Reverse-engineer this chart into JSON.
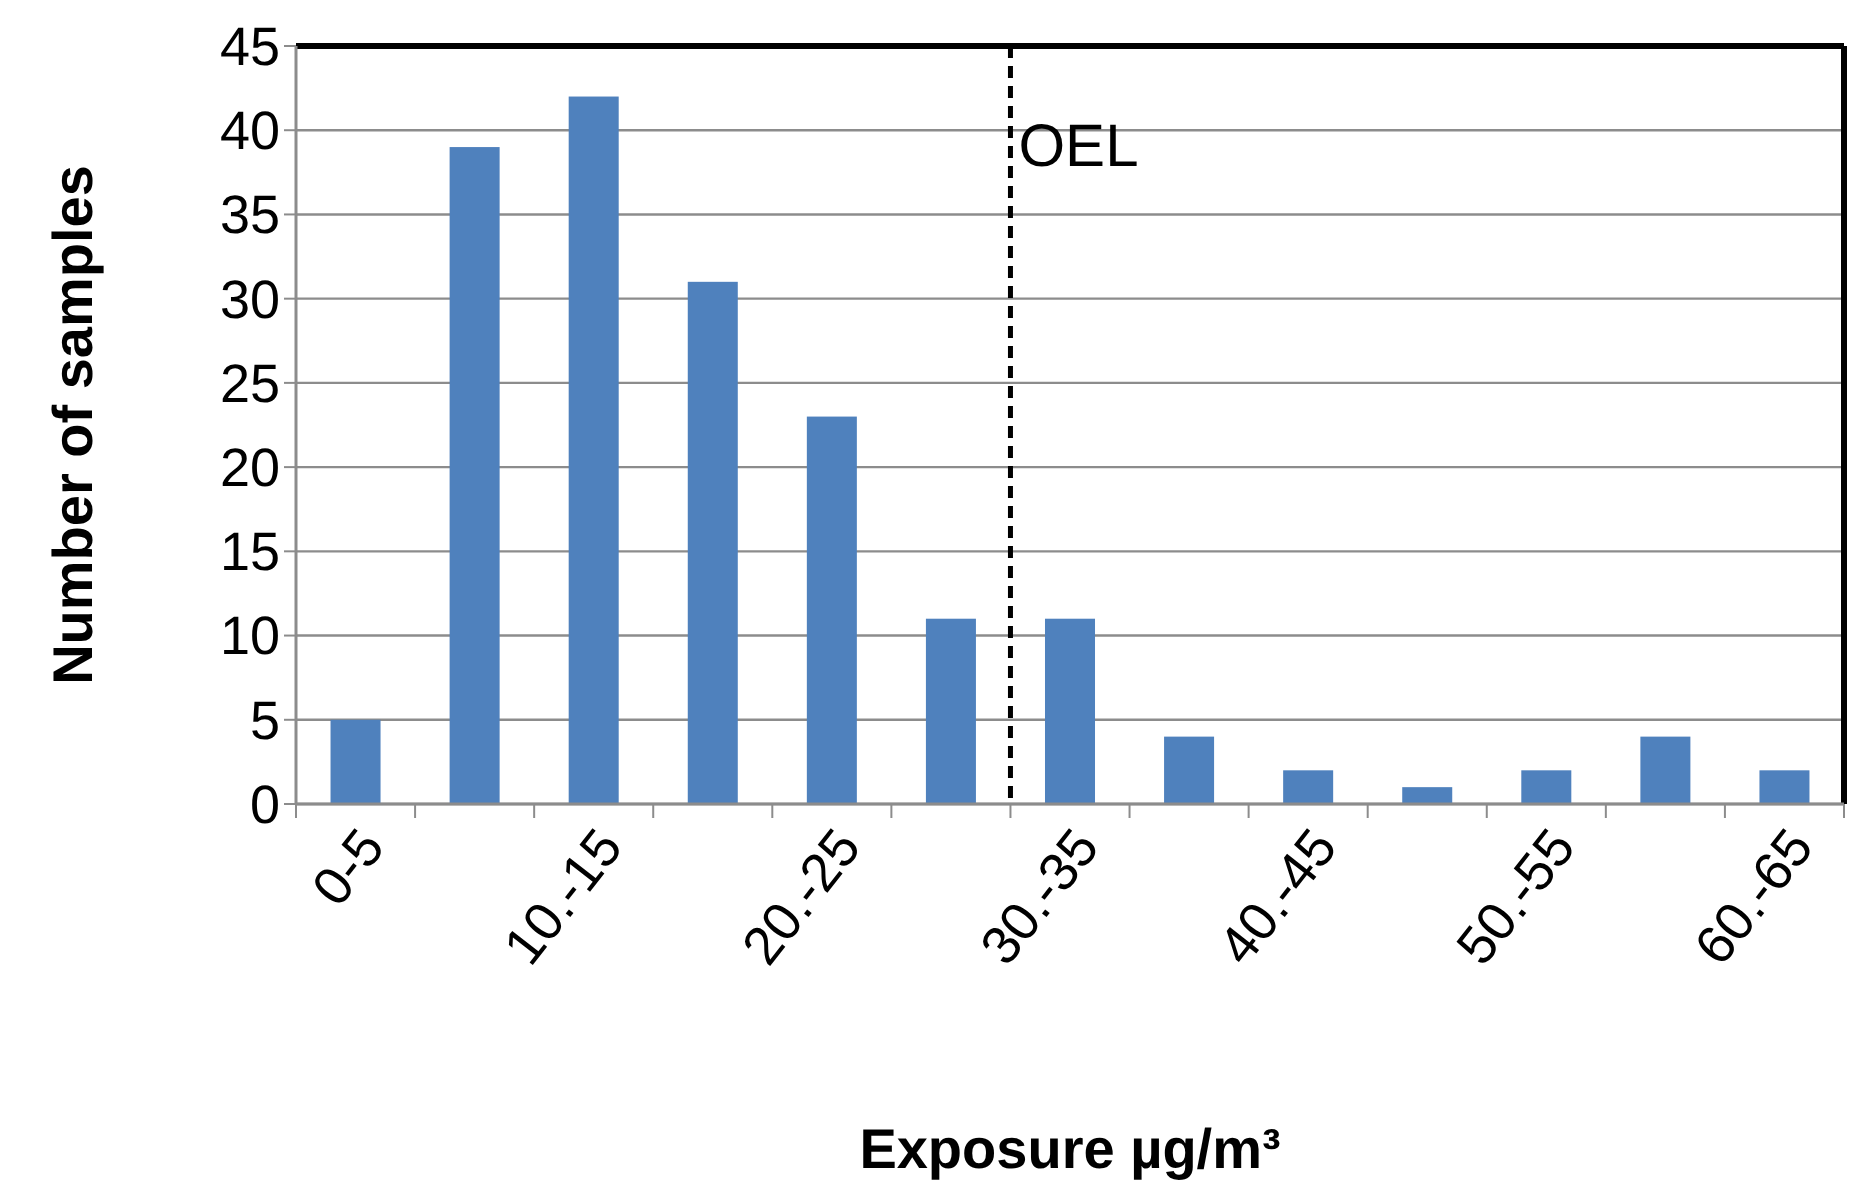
{
  "chart_data": {
    "type": "bar",
    "xlabel": "Exposure µg/m³",
    "ylabel": "Number of samples",
    "categories": [
      "0-5",
      null,
      "10.-15",
      null,
      "20.-25",
      null,
      "30.-35",
      null,
      "40.-45",
      null,
      "50.-55",
      null,
      "60.-65"
    ],
    "values": [
      5,
      39,
      42,
      31,
      23,
      11,
      11,
      4,
      2,
      1,
      2,
      4,
      2
    ],
    "color": "#4f81bd",
    "ylim": [
      0,
      45
    ],
    "yticks": [
      0,
      5,
      10,
      15,
      20,
      25,
      30,
      35,
      40,
      45
    ],
    "grid": "y",
    "ref_lines": [
      {
        "axis": "x",
        "value": "30.-35",
        "label": "OEL",
        "color": "#000000",
        "line_style": "dashed"
      }
    ]
  }
}
